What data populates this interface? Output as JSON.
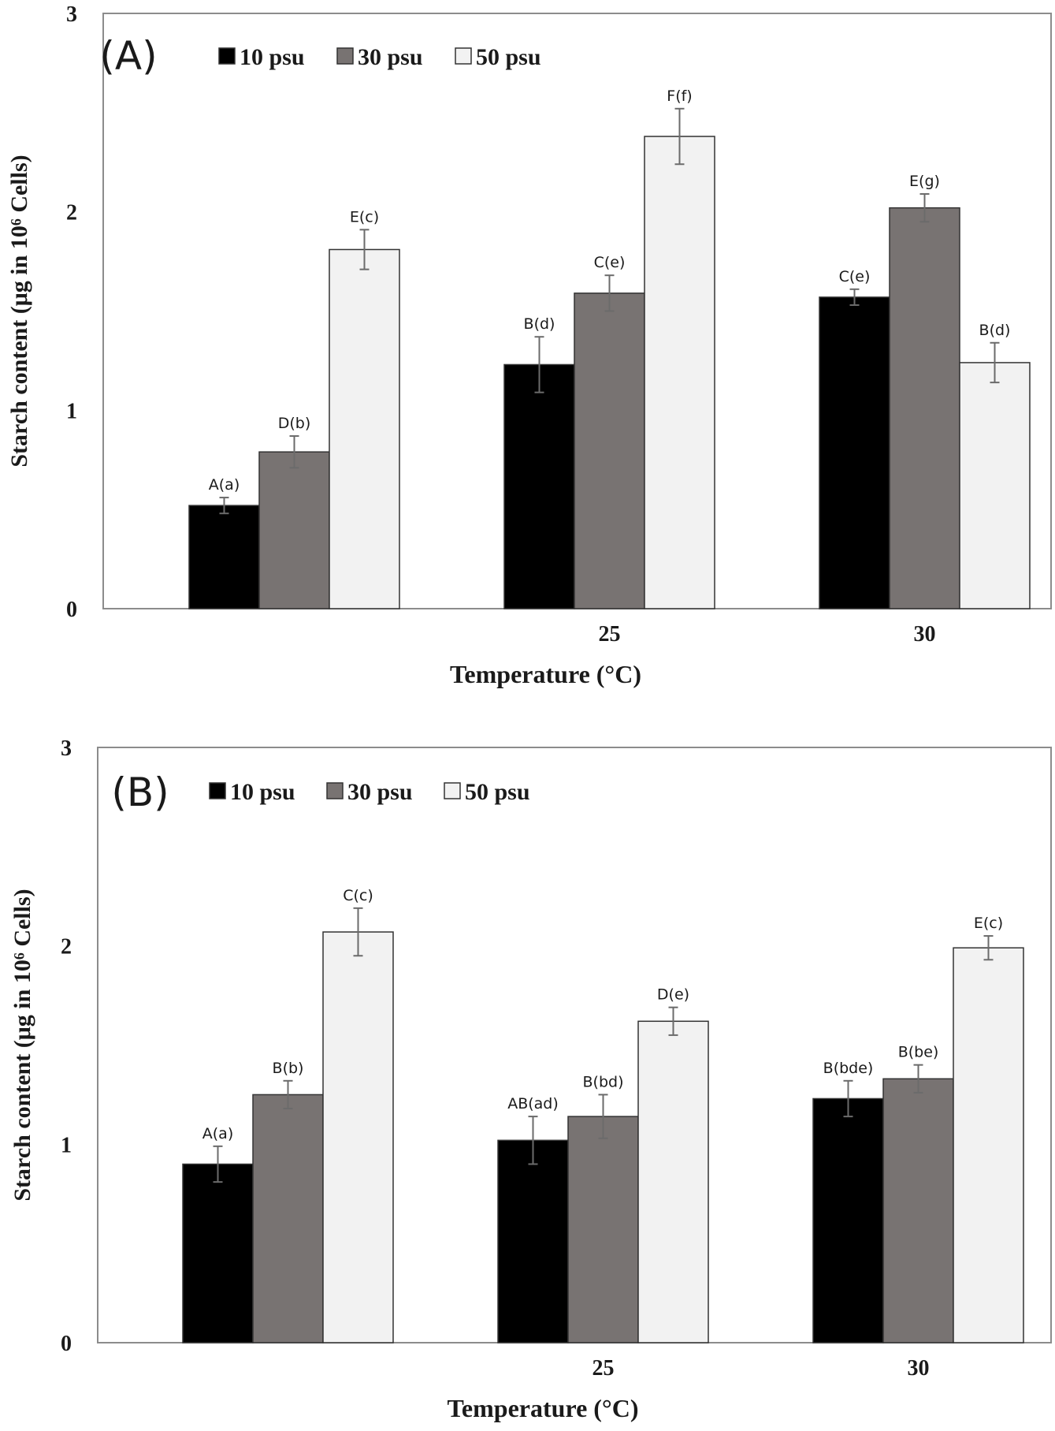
{
  "chart_data": [
    {
      "type": "bar",
      "panel_label": "(A)",
      "categories": [
        "",
        "25",
        "30"
      ],
      "series": [
        {
          "name": "10 psu",
          "color": "#000000",
          "values": [
            0.52,
            1.23,
            1.57
          ],
          "errors": [
            0.04,
            0.14,
            0.04
          ],
          "labels": [
            "A(a)",
            "B(d)",
            "C(e)"
          ]
        },
        {
          "name": "30 psu",
          "color": "#787372",
          "values": [
            0.79,
            1.59,
            2.02
          ],
          "errors": [
            0.08,
            0.09,
            0.07
          ],
          "labels": [
            "D(b)",
            "C(e)",
            "E(g)"
          ]
        },
        {
          "name": "50 psu",
          "color": "#f2f2f2",
          "values": [
            1.81,
            2.38,
            1.24
          ],
          "errors": [
            0.1,
            0.14,
            0.1
          ],
          "labels": [
            "E(c)",
            "F(f)",
            "B(d)"
          ]
        }
      ],
      "xlabel": "Temperature (°C)",
      "ylabel": "Starch content (μg in 10⁶ Cells)",
      "ylim": [
        0,
        3
      ],
      "yticks": [
        "0",
        "1",
        "2",
        "3"
      ],
      "legend": "top-left inside"
    },
    {
      "type": "bar",
      "panel_label": "(B)",
      "categories": [
        "",
        "25",
        "30"
      ],
      "series": [
        {
          "name": "10 psu",
          "color": "#000000",
          "values": [
            0.9,
            1.02,
            1.23
          ],
          "errors": [
            0.09,
            0.12,
            0.09
          ],
          "labels": [
            "A(a)",
            "AB(ad)",
            "B(bde)"
          ]
        },
        {
          "name": "30 psu",
          "color": "#787372",
          "values": [
            1.25,
            1.14,
            1.33
          ],
          "errors": [
            0.07,
            0.11,
            0.07
          ],
          "labels": [
            "B(b)",
            "B(bd)",
            "B(be)"
          ]
        },
        {
          "name": "50 psu",
          "color": "#f2f2f2",
          "values": [
            2.07,
            1.62,
            1.99
          ],
          "errors": [
            0.12,
            0.07,
            0.06
          ],
          "labels": [
            "C(c)",
            "D(e)",
            "E(c)"
          ]
        }
      ],
      "xlabel": "Temperature (°C)",
      "ylabel": "Starch content (μg in 10⁶ Cells)",
      "ylim": [
        0,
        3
      ],
      "yticks": [
        "0",
        "1",
        "2",
        "3"
      ],
      "legend": "top-left inside"
    }
  ]
}
